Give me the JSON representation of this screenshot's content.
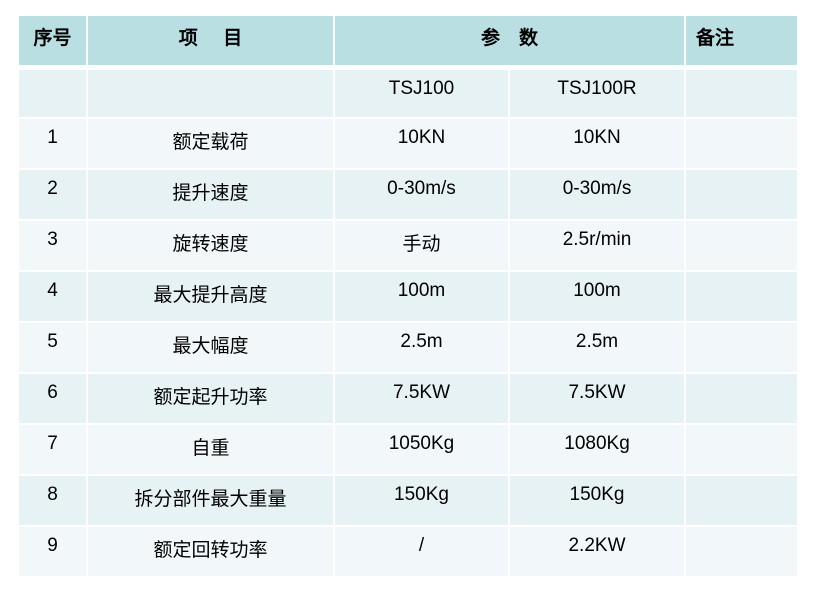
{
  "header": {
    "no": "序号",
    "item": "项　 目",
    "params": "参　数",
    "remark": "备注"
  },
  "models": [
    "TSJ100",
    "TSJ100R"
  ],
  "rows": [
    {
      "no": "1",
      "item": "额定载荷",
      "a": "10KN",
      "b": "10KN",
      "remark": ""
    },
    {
      "no": "2",
      "item": "提升速度",
      "a": "0-30m/s",
      "b": "0-30m/s",
      "remark": ""
    },
    {
      "no": "3",
      "item": "旋转速度",
      "a": "手动",
      "b": "2.5r/min",
      "remark": ""
    },
    {
      "no": "4",
      "item": "最大提升高度",
      "a": "100m",
      "b": "100m",
      "remark": ""
    },
    {
      "no": "5",
      "item": "最大幅度",
      "a": "2.5m",
      "b": "2.5m",
      "remark": ""
    },
    {
      "no": "6",
      "item": "额定起升功率",
      "a": "7.5KW",
      "b": "7.5KW",
      "remark": ""
    },
    {
      "no": "7",
      "item": "自重",
      "a": "1050Kg",
      "b": "1080Kg",
      "remark": ""
    },
    {
      "no": "8",
      "item": "拆分部件最大重量",
      "a": "150Kg",
      "b": "150Kg",
      "remark": ""
    },
    {
      "no": "9",
      "item": "额定回转功率",
      "a": "/",
      "b": "2.2KW",
      "remark": ""
    }
  ],
  "colors": {
    "header": "#b9dfe3",
    "row_a": "#e6f2f4",
    "row_b": "#f2f8fa"
  }
}
